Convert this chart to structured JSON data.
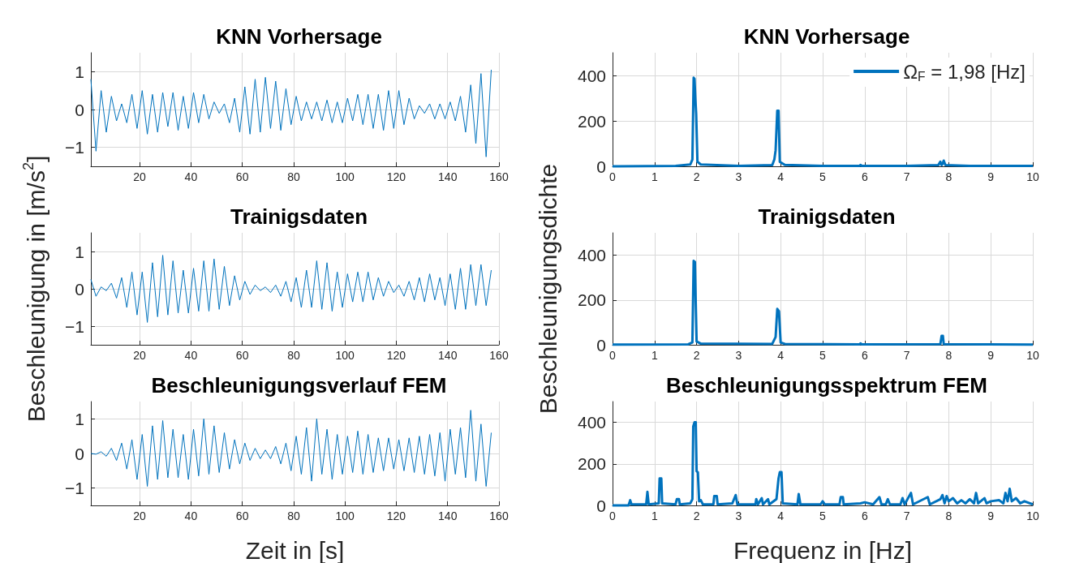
{
  "chart_data": [
    {
      "type": "line",
      "title": "KNN Vorhersage",
      "xlim": [
        1,
        160
      ],
      "xticks": [
        20,
        40,
        60,
        80,
        100,
        120,
        140,
        160
      ],
      "ylim": [
        -1.5,
        1.5
      ],
      "yticks": [
        -1,
        0,
        1
      ],
      "grid": true,
      "x": [
        1,
        3,
        5,
        7,
        9,
        11,
        13,
        15,
        17,
        19,
        21,
        23,
        25,
        27,
        29,
        31,
        33,
        35,
        37,
        39,
        41,
        43,
        45,
        47,
        49,
        51,
        53,
        55,
        57,
        59,
        61,
        63,
        65,
        67,
        69,
        71,
        73,
        75,
        77,
        79,
        81,
        83,
        85,
        87,
        89,
        91,
        93,
        95,
        97,
        99,
        101,
        103,
        105,
        107,
        109,
        111,
        113,
        115,
        117,
        119,
        121,
        123,
        125,
        127,
        129,
        131,
        133,
        135,
        137,
        139,
        141,
        143,
        145,
        147,
        149,
        151,
        153,
        155,
        157
      ],
      "series": [
        {
          "color": "#0072bd",
          "values": [
            0.8,
            -1.1,
            0.5,
            -0.6,
            0.35,
            -0.3,
            0.15,
            -0.35,
            0.4,
            -0.5,
            0.5,
            -0.65,
            0.4,
            -0.6,
            0.45,
            -0.45,
            0.45,
            -0.55,
            0.35,
            -0.5,
            0.45,
            -0.35,
            0.4,
            -0.25,
            0.2,
            -0.1,
            0.15,
            -0.35,
            0.3,
            -0.6,
            0.6,
            -0.65,
            0.8,
            -0.6,
            0.85,
            -0.5,
            0.75,
            -0.55,
            0.55,
            -0.4,
            0.35,
            -0.3,
            0.2,
            -0.25,
            0.2,
            -0.3,
            0.25,
            -0.35,
            0.2,
            -0.35,
            0.3,
            -0.3,
            0.4,
            -0.4,
            0.4,
            -0.5,
            0.4,
            -0.55,
            0.5,
            -0.5,
            0.5,
            -0.4,
            0.3,
            -0.25,
            0.1,
            -0.1,
            0.15,
            -0.25,
            0.15,
            -0.25,
            0.2,
            -0.3,
            0.35,
            -0.6,
            0.65,
            -0.9,
            0.95,
            -1.25,
            1.05
          ]
        }
      ]
    },
    {
      "type": "line",
      "title": "KNN Vorhersage",
      "xlim": [
        0,
        10
      ],
      "xticks": [
        0,
        1,
        2,
        3,
        4,
        5,
        6,
        7,
        8,
        9,
        10
      ],
      "ylim": [
        0,
        500
      ],
      "yticks": [
        0,
        200,
        400
      ],
      "grid": true,
      "legend": "top right",
      "series": [
        {
          "name": "Ω$_{F}$ = 1,98 [Hz]",
          "color": "#0072bd",
          "x": [
            0,
            1.5,
            1.85,
            1.9,
            1.93,
            1.95,
            1.97,
            1.99,
            2.02,
            2.1,
            3,
            3.8,
            3.85,
            3.88,
            3.92,
            3.95,
            3.98,
            4.1,
            5,
            5.88,
            5.9,
            5.93,
            7,
            7.75,
            7.8,
            7.83,
            7.85,
            7.88,
            7.92,
            8.5,
            10
          ],
          "values": [
            0,
            2,
            8,
            30,
            390,
            385,
            300,
            230,
            20,
            8,
            2,
            5,
            30,
            70,
            245,
            245,
            20,
            6,
            2,
            2,
            6,
            2,
            2,
            5,
            20,
            5,
            10,
            25,
            5,
            2,
            2
          ]
        }
      ]
    },
    {
      "type": "line",
      "title": "Trainigsdaten",
      "ylabel": "Beschleunigung in [m/s$^{2}$]",
      "xlim": [
        1,
        160
      ],
      "xticks": [
        20,
        40,
        60,
        80,
        100,
        120,
        140,
        160
      ],
      "ylim": [
        -1.5,
        1.5
      ],
      "yticks": [
        -1,
        0,
        1
      ],
      "grid": true,
      "x": [
        1,
        3,
        5,
        7,
        9,
        11,
        13,
        15,
        17,
        19,
        21,
        23,
        25,
        27,
        29,
        31,
        33,
        35,
        37,
        39,
        41,
        43,
        45,
        47,
        49,
        51,
        53,
        55,
        57,
        59,
        61,
        63,
        65,
        67,
        69,
        71,
        73,
        75,
        77,
        79,
        81,
        83,
        85,
        87,
        89,
        91,
        93,
        95,
        97,
        99,
        101,
        103,
        105,
        107,
        109,
        111,
        113,
        115,
        117,
        119,
        121,
        123,
        125,
        127,
        129,
        131,
        133,
        135,
        137,
        139,
        141,
        143,
        145,
        147,
        149,
        151,
        153,
        155,
        157
      ],
      "series": [
        {
          "color": "#0072bd",
          "values": [
            0.25,
            -0.2,
            0.05,
            -0.05,
            0.15,
            -0.25,
            0.3,
            -0.5,
            0.45,
            -0.7,
            0.45,
            -0.9,
            0.7,
            -0.75,
            0.9,
            -0.7,
            0.75,
            -0.65,
            0.5,
            -0.65,
            0.55,
            -0.6,
            0.75,
            -0.6,
            0.8,
            -0.55,
            0.6,
            -0.45,
            0.35,
            -0.3,
            0.2,
            -0.15,
            0.1,
            -0.05,
            0.05,
            -0.1,
            0.1,
            -0.2,
            0.2,
            -0.35,
            0.3,
            -0.5,
            0.5,
            -0.5,
            0.75,
            -0.55,
            0.7,
            -0.6,
            0.45,
            -0.5,
            0.4,
            -0.35,
            0.45,
            -0.35,
            0.45,
            -0.3,
            0.3,
            -0.2,
            0.2,
            -0.1,
            0.1,
            -0.2,
            0.2,
            -0.3,
            0.3,
            -0.35,
            0.4,
            -0.3,
            0.3,
            -0.45,
            0.4,
            -0.55,
            0.55,
            -0.55,
            0.65,
            -0.45,
            0.65,
            -0.45,
            0.5
          ]
        }
      ]
    },
    {
      "type": "line",
      "title": "Trainigsdaten",
      "ylabel": "Beschleunigungsdichte",
      "xlim": [
        0,
        10
      ],
      "xticks": [
        0,
        1,
        2,
        3,
        4,
        5,
        6,
        7,
        8,
        9,
        10
      ],
      "ylim": [
        0,
        500
      ],
      "yticks": [
        0,
        200,
        400
      ],
      "grid": true,
      "series": [
        {
          "color": "#0072bd",
          "x": [
            0,
            1.8,
            1.9,
            1.93,
            1.96,
            1.98,
            2,
            2.1,
            3.8,
            3.88,
            3.92,
            3.96,
            4,
            4.1,
            5.88,
            5.9,
            5.93,
            7.8,
            7.83,
            7.86,
            7.88,
            10
          ],
          "values": [
            1,
            2,
            10,
            375,
            370,
            185,
            15,
            5,
            4,
            35,
            160,
            150,
            10,
            4,
            2,
            6,
            2,
            3,
            40,
            40,
            3,
            1
          ]
        }
      ]
    },
    {
      "type": "line",
      "title": "Beschleunigungsverlauf FEM",
      "xlabel": "Zeit in [s]",
      "xlim": [
        1,
        160
      ],
      "xticks": [
        20,
        40,
        60,
        80,
        100,
        120,
        140,
        160
      ],
      "ylim": [
        -1.5,
        1.5
      ],
      "yticks": [
        -1,
        0,
        1
      ],
      "grid": true,
      "x": [
        1,
        3,
        5,
        7,
        9,
        11,
        13,
        15,
        17,
        19,
        21,
        23,
        25,
        27,
        29,
        31,
        33,
        35,
        37,
        39,
        41,
        43,
        45,
        47,
        49,
        51,
        53,
        55,
        57,
        59,
        61,
        63,
        65,
        67,
        69,
        71,
        73,
        75,
        77,
        79,
        81,
        83,
        85,
        87,
        89,
        91,
        93,
        95,
        97,
        99,
        101,
        103,
        105,
        107,
        109,
        111,
        113,
        115,
        117,
        119,
        121,
        123,
        125,
        127,
        129,
        131,
        133,
        135,
        137,
        139,
        141,
        143,
        145,
        147,
        149,
        151,
        153,
        155,
        157
      ],
      "series": [
        {
          "color": "#0072bd",
          "values": [
            0,
            -0.02,
            0.05,
            -0.08,
            0.15,
            -0.2,
            0.3,
            -0.45,
            0.4,
            -0.75,
            0.55,
            -0.95,
            0.8,
            -0.75,
            0.95,
            -0.7,
            0.7,
            -0.7,
            0.55,
            -0.75,
            0.7,
            -0.65,
            1.0,
            -0.6,
            0.8,
            -0.55,
            0.6,
            -0.45,
            0.4,
            -0.3,
            0.3,
            -0.2,
            0.15,
            -0.15,
            0.1,
            -0.15,
            0.2,
            -0.3,
            0.3,
            -0.5,
            0.5,
            -0.6,
            0.75,
            -0.8,
            1.0,
            -0.6,
            0.7,
            -0.75,
            0.55,
            -0.6,
            0.5,
            -0.55,
            0.65,
            -0.6,
            0.55,
            -0.55,
            0.45,
            -0.5,
            0.45,
            -0.45,
            0.4,
            -0.5,
            0.45,
            -0.55,
            0.5,
            -0.6,
            0.55,
            -0.65,
            0.6,
            -0.8,
            0.7,
            -0.6,
            0.75,
            -0.7,
            1.25,
            -0.8,
            0.85,
            -0.95,
            0.6
          ]
        }
      ]
    },
    {
      "type": "line",
      "title": "Beschleunigungsspektrum FEM",
      "xlabel": "Frequenz in [Hz]",
      "xlim": [
        0,
        10
      ],
      "xticks": [
        0,
        1,
        2,
        3,
        4,
        5,
        6,
        7,
        8,
        9,
        10
      ],
      "ylim": [
        0,
        500
      ],
      "yticks": [
        0,
        200,
        400
      ],
      "grid": true,
      "series": [
        {
          "color": "#0072bd",
          "x": [
            0,
            0.38,
            0.42,
            0.45,
            0.8,
            0.83,
            0.86,
            1.1,
            1.12,
            1.16,
            1.18,
            1.5,
            1.53,
            1.58,
            1.6,
            1.85,
            1.9,
            1.92,
            1.95,
            1.98,
            2,
            2.03,
            2.06,
            2.1,
            2.15,
            2.4,
            2.42,
            2.48,
            2.5,
            2.85,
            2.93,
            2.97,
            3.4,
            3.42,
            3.46,
            3.55,
            3.58,
            3.7,
            3.73,
            3.9,
            3.95,
            3.98,
            4.02,
            4.05,
            4.4,
            4.43,
            4.47,
            4.95,
            5,
            5.05,
            5.4,
            5.43,
            5.48,
            5.5,
            5.9,
            6,
            6.2,
            6.35,
            6.4,
            6.5,
            6.55,
            6.6,
            6.85,
            6.9,
            6.95,
            7.1,
            7.15,
            7.5,
            7.55,
            7.8,
            7.85,
            7.9,
            7.95,
            8,
            8.1,
            8.2,
            8.3,
            8.4,
            8.5,
            8.6,
            8.65,
            8.7,
            8.85,
            8.9,
            9,
            9.2,
            9.3,
            9.35,
            9.4,
            9.45,
            9.5,
            9.6,
            9.7,
            9.8,
            10
          ],
          "values": [
            0,
            0,
            25,
            5,
            5,
            65,
            5,
            10,
            130,
            130,
            10,
            5,
            30,
            30,
            5,
            10,
            30,
            380,
            400,
            400,
            165,
            160,
            20,
            25,
            5,
            5,
            45,
            45,
            5,
            10,
            50,
            5,
            5,
            30,
            5,
            35,
            5,
            30,
            5,
            30,
            130,
            160,
            160,
            10,
            5,
            55,
            5,
            5,
            20,
            5,
            5,
            40,
            40,
            5,
            10,
            15,
            5,
            40,
            5,
            5,
            30,
            5,
            5,
            35,
            5,
            60,
            5,
            40,
            5,
            30,
            50,
            10,
            45,
            20,
            35,
            10,
            25,
            10,
            30,
            10,
            60,
            10,
            35,
            10,
            20,
            25,
            10,
            60,
            20,
            80,
            20,
            35,
            10,
            20,
            5
          ]
        }
      ]
    }
  ]
}
